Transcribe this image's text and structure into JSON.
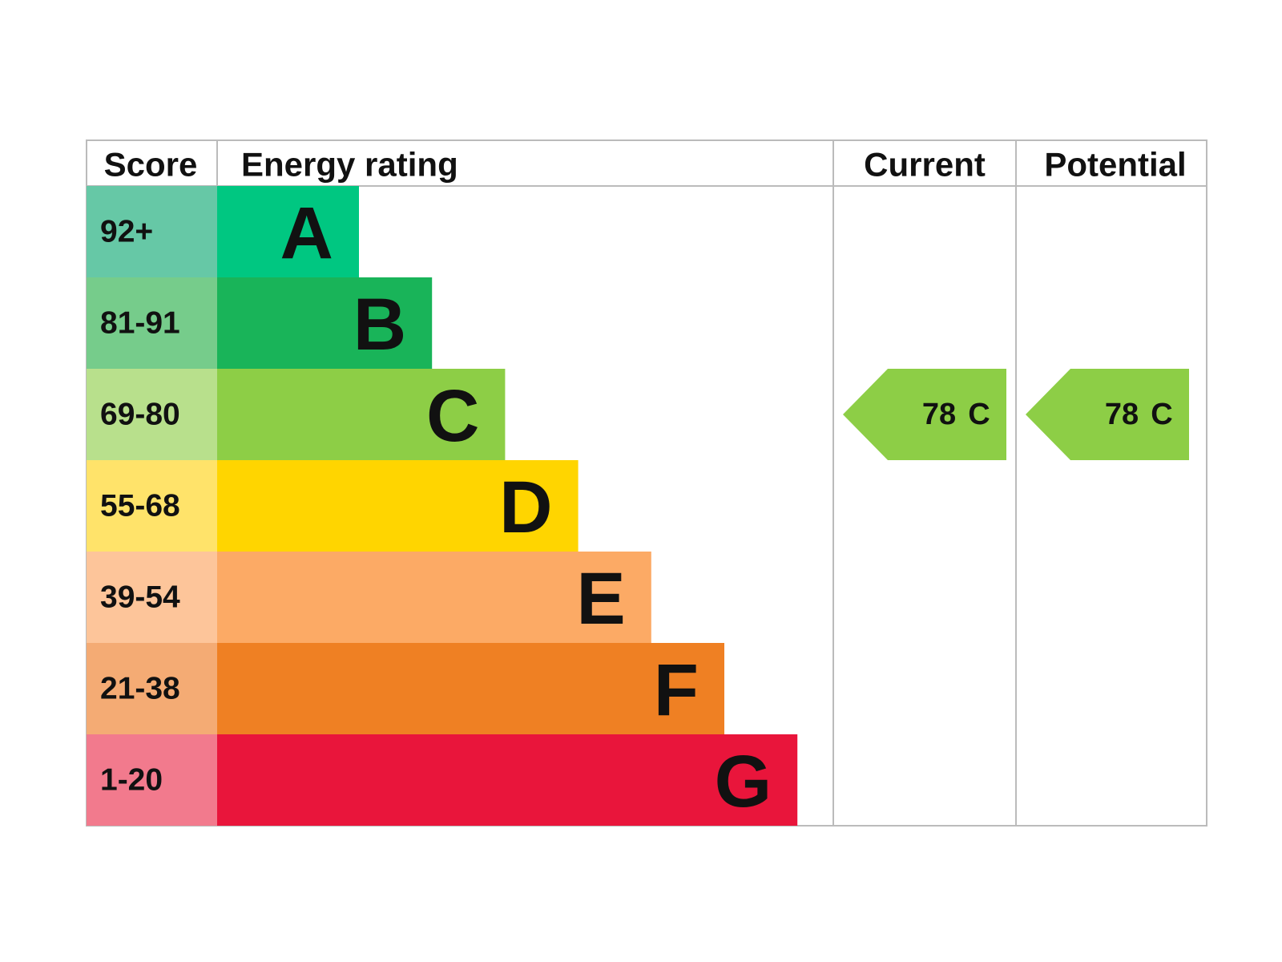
{
  "header": {
    "score": "Score",
    "energy_rating": "Energy rating",
    "current": "Current",
    "potential": "Potential"
  },
  "bands": [
    {
      "score": "92+",
      "letter": "A",
      "color": "#00c781",
      "score_color": "#66c8a6"
    },
    {
      "score": "81-91",
      "letter": "B",
      "color": "#19b459",
      "score_color": "#76cc8b"
    },
    {
      "score": "69-80",
      "letter": "C",
      "color": "#8dce46",
      "score_color": "#b8e08c"
    },
    {
      "score": "55-68",
      "letter": "D",
      "color": "#ffd500",
      "score_color": "#ffe36a"
    },
    {
      "score": "39-54",
      "letter": "E",
      "color": "#fcaa65",
      "score_color": "#fdc59a"
    },
    {
      "score": "21-38",
      "letter": "F",
      "color": "#ef8023",
      "score_color": "#f4ab74"
    },
    {
      "score": "1-20",
      "letter": "G",
      "color": "#e9153b",
      "score_color": "#f27a8d"
    }
  ],
  "current": {
    "score": 78,
    "letter": "C"
  },
  "potential": {
    "score": 78,
    "letter": "C"
  }
}
